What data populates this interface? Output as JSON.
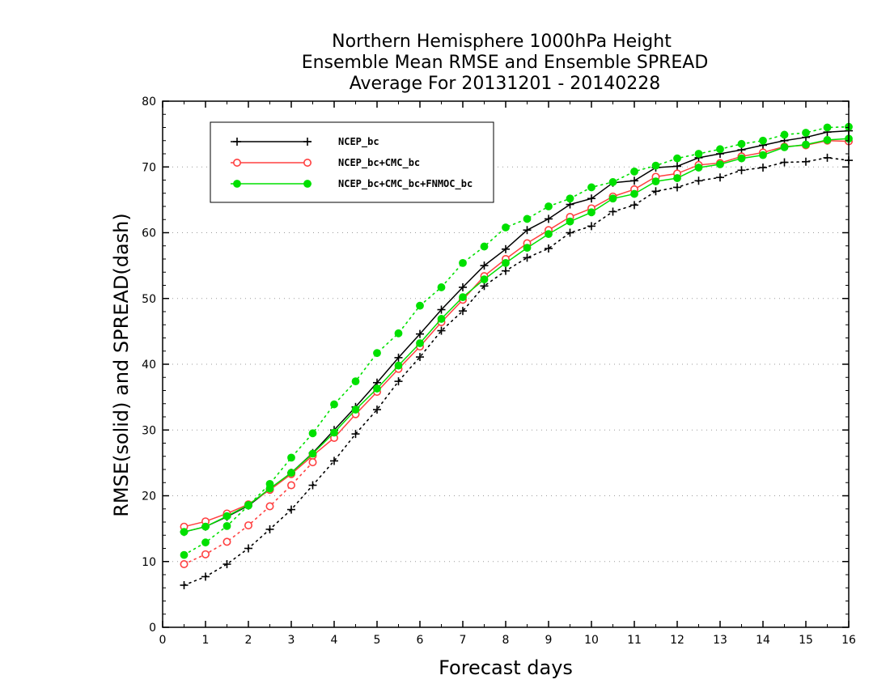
{
  "chart_data": {
    "type": "line",
    "title_lines": [
      "Northern Hemisphere 1000hPa Height",
      "Ensemble Mean RMSE and Ensemble SPREAD",
      "Average For 20131201 - 20140228"
    ],
    "xlabel": "Forecast days",
    "ylabel": "RMSE(solid) and SPREAD(dash)",
    "xlim": [
      0,
      16
    ],
    "ylim": [
      0,
      80
    ],
    "xticks": [
      0,
      1,
      2,
      3,
      4,
      5,
      6,
      7,
      8,
      9,
      10,
      11,
      12,
      13,
      14,
      15,
      16
    ],
    "yticks": [
      0,
      10,
      20,
      30,
      40,
      50,
      60,
      70,
      80
    ],
    "grid": "horizontal dotted",
    "legend_position": "top-left",
    "x": [
      0.5,
      1,
      1.5,
      2,
      2.5,
      3,
      3.5,
      4,
      4.5,
      5,
      5.5,
      6,
      6.5,
      7,
      7.5,
      8,
      8.5,
      9,
      9.5,
      10,
      10.5,
      11,
      11.5,
      12,
      12.5,
      13,
      13.5,
      14,
      14.5,
      15,
      15.5,
      16
    ],
    "series": [
      {
        "name": "NCEP_bc",
        "color": "#000000",
        "marker": "plus",
        "rmse": [
          14.5,
          15.3,
          16.8,
          18.5,
          21.0,
          23.5,
          26.5,
          30.0,
          33.5,
          37.2,
          41.0,
          44.6,
          48.3,
          51.7,
          55.0,
          57.5,
          60.4,
          62.1,
          64.3,
          65.2,
          67.6,
          67.9,
          69.9,
          70.1,
          71.4,
          72.0,
          72.6,
          73.3,
          74.0,
          74.5,
          75.3,
          75.5
        ],
        "spread": [
          6.4,
          7.7,
          9.6,
          12.0,
          14.9,
          17.9,
          21.6,
          25.3,
          29.4,
          33.1,
          37.4,
          41.1,
          45.1,
          48.1,
          51.9,
          54.2,
          56.2,
          57.6,
          60.0,
          61.0,
          63.2,
          64.2,
          66.3,
          66.9,
          67.9,
          68.4,
          69.5,
          69.9,
          70.7,
          70.8,
          71.4,
          71.0
        ]
      },
      {
        "name": "NCEP_bc+CMC_bc",
        "color": "#ff4040",
        "marker": "open-circle",
        "rmse": [
          15.3,
          16.1,
          17.3,
          18.7,
          20.9,
          23.3,
          26.1,
          28.8,
          32.4,
          35.8,
          39.3,
          42.7,
          46.4,
          49.8,
          53.4,
          56.0,
          58.4,
          60.4,
          62.4,
          63.7,
          65.5,
          66.6,
          68.5,
          69.0,
          70.3,
          70.6,
          71.6,
          72.2,
          73.1,
          73.3,
          74.0,
          73.9
        ],
        "spread": [
          9.6,
          11.1,
          13.0,
          15.5,
          18.4,
          21.6,
          25.1,
          null,
          null,
          null,
          null,
          null,
          null,
          null,
          null,
          null,
          null,
          null,
          null,
          null,
          null,
          null,
          null,
          null,
          null,
          null,
          null,
          null,
          null,
          null,
          null,
          null
        ]
      },
      {
        "name": "NCEP_bc+CMC_bc+FNMOC_bc",
        "color": "#00e000",
        "marker": "filled-circle",
        "rmse": [
          14.5,
          15.3,
          16.9,
          18.6,
          21.1,
          23.5,
          26.4,
          29.6,
          33.1,
          36.3,
          39.8,
          43.2,
          46.9,
          50.2,
          52.9,
          55.4,
          57.7,
          59.8,
          61.7,
          63.1,
          65.2,
          65.9,
          67.8,
          68.3,
          69.9,
          70.4,
          71.3,
          71.8,
          73.0,
          73.4,
          74.1,
          74.3
        ],
        "spread": [
          11.0,
          12.9,
          15.4,
          18.5,
          21.8,
          25.8,
          29.5,
          33.9,
          37.4,
          41.7,
          44.7,
          48.9,
          51.7,
          55.4,
          57.9,
          60.8,
          62.1,
          64.0,
          65.2,
          66.9,
          67.7,
          69.3,
          70.2,
          71.3,
          72.0,
          72.7,
          73.5,
          74.0,
          74.9,
          75.2,
          76.0,
          76.1
        ]
      }
    ]
  }
}
